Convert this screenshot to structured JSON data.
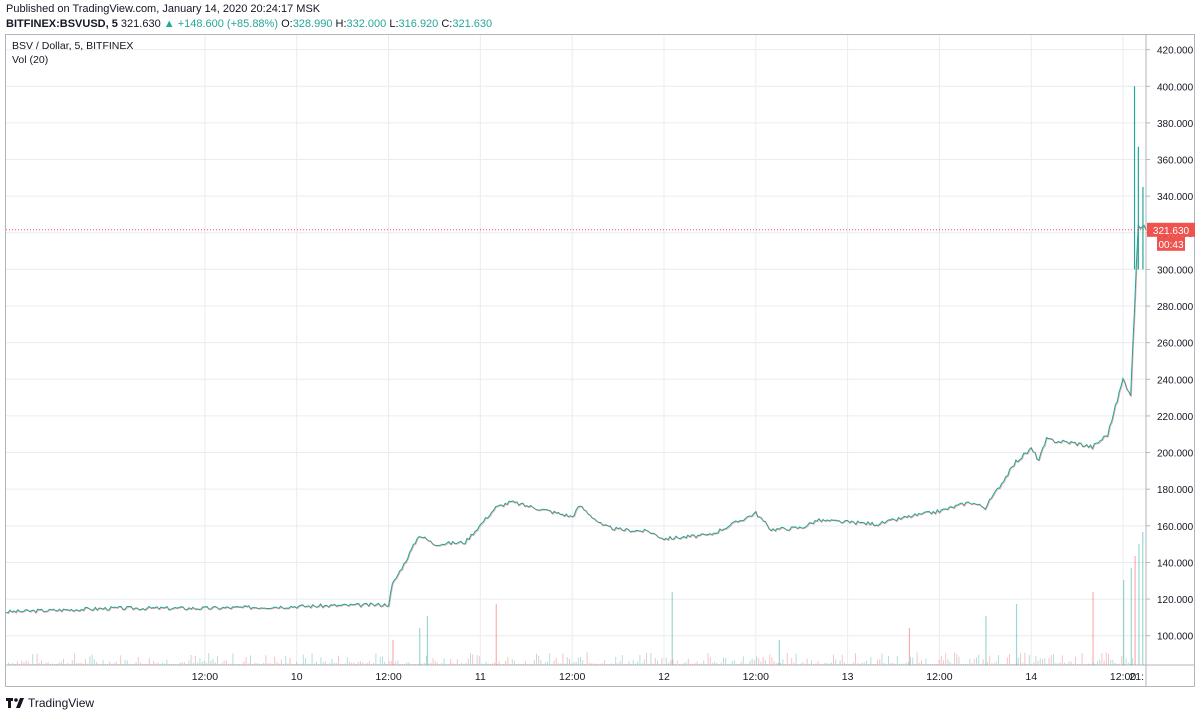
{
  "header": {
    "published": "Published on TradingView.com, January 14, 2020 20:24:17 MSK",
    "symbol": "BITFINEX:BSVUSD, 5",
    "last": "321.630",
    "change": "▲ +148.600 (+85.88%)",
    "open_label": "O:",
    "open": "328.990",
    "high_label": "H:",
    "high": "332.000",
    "low_label": "L:",
    "low": "316.920",
    "close_label": "C:",
    "close": "321.630"
  },
  "legend": {
    "title": "BSV / Dollar, 5, BITFINEX",
    "volume": "Vol (20)"
  },
  "price_tag": {
    "value": "321.630",
    "timer": "00:43"
  },
  "footer": {
    "brand": "TradingView"
  },
  "colors": {
    "up": "#26a69a",
    "down": "#ef5350",
    "grid": "#e9ecf0",
    "last_line": "#ef5350"
  },
  "chart_data": {
    "type": "line",
    "title": "BSV / Dollar, 5, BITFINEX",
    "xlabel": "",
    "ylabel": "",
    "ylim": [
      84,
      428
    ],
    "yticks": [
      "100.000",
      "120.000",
      "140.000",
      "160.000",
      "180.000",
      "200.000",
      "220.000",
      "240.000",
      "260.000",
      "280.000",
      "300.000",
      "320.000",
      "340.000",
      "360.000",
      "380.000",
      "400.000",
      "420.000"
    ],
    "xticks": [
      "12:00",
      "10",
      "12:00",
      "11",
      "12:00",
      "12",
      "12:00",
      "13",
      "12:00",
      "14",
      "12:00",
      "21:"
    ],
    "xlim_hours": [
      -14,
      135
    ],
    "xtick_hours": [
      12,
      24,
      36,
      48,
      60,
      72,
      84,
      96,
      108,
      120,
      132,
      141
    ],
    "grid": true,
    "series": [
      {
        "x_hours": [
          -14,
          0,
          12,
          24,
          36,
          36.5,
          38,
          40,
          42,
          46,
          50,
          52,
          60,
          61,
          64,
          66,
          70,
          72,
          78,
          84,
          86,
          90,
          92,
          96,
          100,
          104,
          108,
          112,
          114,
          118,
          120,
          121,
          122,
          126,
          128,
          130,
          132,
          133,
          134,
          135
        ],
        "values": [
          113,
          115,
          115,
          116,
          117,
          128,
          139,
          155,
          150,
          151,
          170,
          173,
          165,
          171,
          160,
          158,
          157,
          153,
          155,
          167,
          158,
          159,
          163,
          162,
          161,
          165,
          168,
          173,
          170,
          195,
          202,
          196,
          207,
          205,
          203,
          210,
          240,
          232,
          325,
          321.63
        ]
      }
    ],
    "spikes": [
      {
        "x_hours": 133.5,
        "high": 400
      },
      {
        "x_hours": 134,
        "high": 367
      },
      {
        "x_hours": 134.6,
        "high": 345
      }
    ],
    "volume_spikes_hours": [
      36.5,
      40,
      41,
      50,
      73,
      87,
      104,
      114,
      118,
      128,
      132,
      133,
      133.5,
      134,
      134.5
    ],
    "last_price": 321.63
  }
}
